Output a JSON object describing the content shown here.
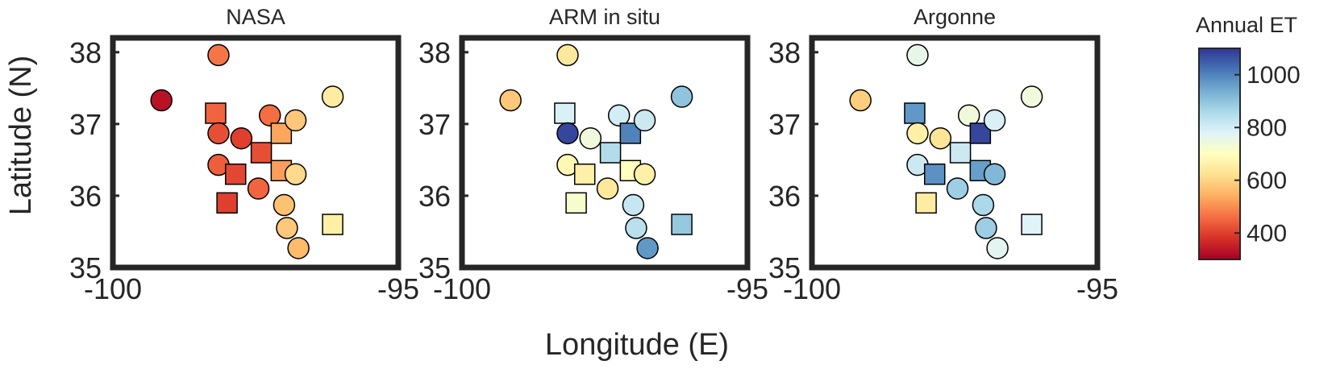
{
  "figure": {
    "ylabel": "Latitude (N)",
    "xlabel": "Longitude (E)"
  },
  "colorbar": {
    "title": "Annual ET",
    "min": 300,
    "max": 1100,
    "ticks": [
      400,
      600,
      800,
      1000
    ],
    "colormap": [
      "#a50026",
      "#d73027",
      "#f46d43",
      "#fdae61",
      "#fee090",
      "#ffffbf",
      "#e0f3f8",
      "#abd9e9",
      "#74add1",
      "#4575b4",
      "#313695"
    ]
  },
  "chart_data": [
    {
      "type": "scatter",
      "title": "NASA",
      "xlim": [
        -100,
        -95
      ],
      "ylim": [
        35,
        38.2
      ],
      "xticks": [
        -100,
        -95
      ],
      "yticks": [
        35,
        36,
        37,
        38
      ],
      "points": [
        {
          "x": -99.15,
          "y": 37.33,
          "value": 330,
          "marker": "circle"
        },
        {
          "x": -98.15,
          "y": 37.96,
          "value": 470,
          "marker": "circle"
        },
        {
          "x": -98.2,
          "y": 37.15,
          "value": 450,
          "marker": "square"
        },
        {
          "x": -98.15,
          "y": 36.87,
          "value": 420,
          "marker": "circle"
        },
        {
          "x": -97.75,
          "y": 36.8,
          "value": 400,
          "marker": "circle"
        },
        {
          "x": -98.15,
          "y": 36.43,
          "value": 440,
          "marker": "circle"
        },
        {
          "x": -97.85,
          "y": 36.3,
          "value": 410,
          "marker": "square"
        },
        {
          "x": -97.45,
          "y": 36.1,
          "value": 450,
          "marker": "circle"
        },
        {
          "x": -98.0,
          "y": 35.9,
          "value": 400,
          "marker": "square"
        },
        {
          "x": -97.4,
          "y": 36.6,
          "value": 420,
          "marker": "square"
        },
        {
          "x": -97.25,
          "y": 37.12,
          "value": 460,
          "marker": "circle"
        },
        {
          "x": -97.05,
          "y": 36.87,
          "value": 530,
          "marker": "square"
        },
        {
          "x": -97.05,
          "y": 36.35,
          "value": 520,
          "marker": "square"
        },
        {
          "x": -96.8,
          "y": 37.05,
          "value": 580,
          "marker": "circle"
        },
        {
          "x": -96.8,
          "y": 36.3,
          "value": 610,
          "marker": "circle"
        },
        {
          "x": -97.0,
          "y": 35.87,
          "value": 570,
          "marker": "circle"
        },
        {
          "x": -96.95,
          "y": 35.55,
          "value": 580,
          "marker": "circle"
        },
        {
          "x": -96.75,
          "y": 35.27,
          "value": 560,
          "marker": "circle"
        },
        {
          "x": -96.15,
          "y": 37.38,
          "value": 650,
          "marker": "circle"
        },
        {
          "x": -96.15,
          "y": 35.6,
          "value": 660,
          "marker": "square"
        }
      ]
    },
    {
      "type": "scatter",
      "title": "ARM in situ",
      "xlim": [
        -100,
        -95
      ],
      "ylim": [
        35,
        38.2
      ],
      "xticks": [
        -100,
        -95
      ],
      "yticks": [
        35,
        36,
        37,
        38
      ],
      "points": [
        {
          "x": -99.15,
          "y": 37.33,
          "value": 580,
          "marker": "circle"
        },
        {
          "x": -98.15,
          "y": 37.96,
          "value": 640,
          "marker": "circle"
        },
        {
          "x": -98.2,
          "y": 37.15,
          "value": 790,
          "marker": "square"
        },
        {
          "x": -98.15,
          "y": 36.87,
          "value": 1080,
          "marker": "circle"
        },
        {
          "x": -97.75,
          "y": 36.8,
          "value": 740,
          "marker": "circle"
        },
        {
          "x": -98.15,
          "y": 36.43,
          "value": 680,
          "marker": "circle"
        },
        {
          "x": -97.85,
          "y": 36.3,
          "value": 660,
          "marker": "square"
        },
        {
          "x": -97.45,
          "y": 36.1,
          "value": 640,
          "marker": "circle"
        },
        {
          "x": -98.0,
          "y": 35.9,
          "value": 720,
          "marker": "square"
        },
        {
          "x": -97.4,
          "y": 36.6,
          "value": 850,
          "marker": "square"
        },
        {
          "x": -97.25,
          "y": 37.12,
          "value": 800,
          "marker": "circle"
        },
        {
          "x": -97.05,
          "y": 36.87,
          "value": 1000,
          "marker": "square"
        },
        {
          "x": -97.05,
          "y": 36.35,
          "value": 700,
          "marker": "square"
        },
        {
          "x": -96.8,
          "y": 37.05,
          "value": 810,
          "marker": "circle"
        },
        {
          "x": -96.8,
          "y": 36.3,
          "value": 660,
          "marker": "circle"
        },
        {
          "x": -97.0,
          "y": 35.87,
          "value": 820,
          "marker": "circle"
        },
        {
          "x": -96.95,
          "y": 35.55,
          "value": 840,
          "marker": "circle"
        },
        {
          "x": -96.75,
          "y": 35.27,
          "value": 970,
          "marker": "circle"
        },
        {
          "x": -96.15,
          "y": 37.38,
          "value": 900,
          "marker": "circle"
        },
        {
          "x": -96.15,
          "y": 35.6,
          "value": 890,
          "marker": "square"
        }
      ]
    },
    {
      "type": "scatter",
      "title": "Argonne",
      "xlim": [
        -100,
        -95
      ],
      "ylim": [
        35,
        38.2
      ],
      "xticks": [
        -100,
        -95
      ],
      "yticks": [
        35,
        36,
        37,
        38
      ],
      "points": [
        {
          "x": -99.15,
          "y": 37.33,
          "value": 590,
          "marker": "circle"
        },
        {
          "x": -98.15,
          "y": 37.96,
          "value": 760,
          "marker": "circle"
        },
        {
          "x": -98.2,
          "y": 37.15,
          "value": 970,
          "marker": "square"
        },
        {
          "x": -98.15,
          "y": 36.87,
          "value": 660,
          "marker": "circle"
        },
        {
          "x": -97.75,
          "y": 36.8,
          "value": 630,
          "marker": "circle"
        },
        {
          "x": -98.15,
          "y": 36.43,
          "value": 810,
          "marker": "circle"
        },
        {
          "x": -97.85,
          "y": 36.3,
          "value": 980,
          "marker": "square"
        },
        {
          "x": -97.45,
          "y": 36.1,
          "value": 880,
          "marker": "circle"
        },
        {
          "x": -98.0,
          "y": 35.9,
          "value": 650,
          "marker": "square"
        },
        {
          "x": -97.4,
          "y": 36.6,
          "value": 810,
          "marker": "square"
        },
        {
          "x": -97.25,
          "y": 37.12,
          "value": 740,
          "marker": "circle"
        },
        {
          "x": -97.05,
          "y": 36.87,
          "value": 1080,
          "marker": "square"
        },
        {
          "x": -97.05,
          "y": 36.35,
          "value": 960,
          "marker": "square"
        },
        {
          "x": -96.8,
          "y": 37.05,
          "value": 790,
          "marker": "circle"
        },
        {
          "x": -96.8,
          "y": 36.3,
          "value": 920,
          "marker": "circle"
        },
        {
          "x": -97.0,
          "y": 35.87,
          "value": 860,
          "marker": "circle"
        },
        {
          "x": -96.95,
          "y": 35.55,
          "value": 880,
          "marker": "circle"
        },
        {
          "x": -96.75,
          "y": 35.27,
          "value": 770,
          "marker": "circle"
        },
        {
          "x": -96.15,
          "y": 37.38,
          "value": 740,
          "marker": "circle"
        },
        {
          "x": -96.15,
          "y": 35.6,
          "value": 780,
          "marker": "square"
        }
      ]
    }
  ]
}
